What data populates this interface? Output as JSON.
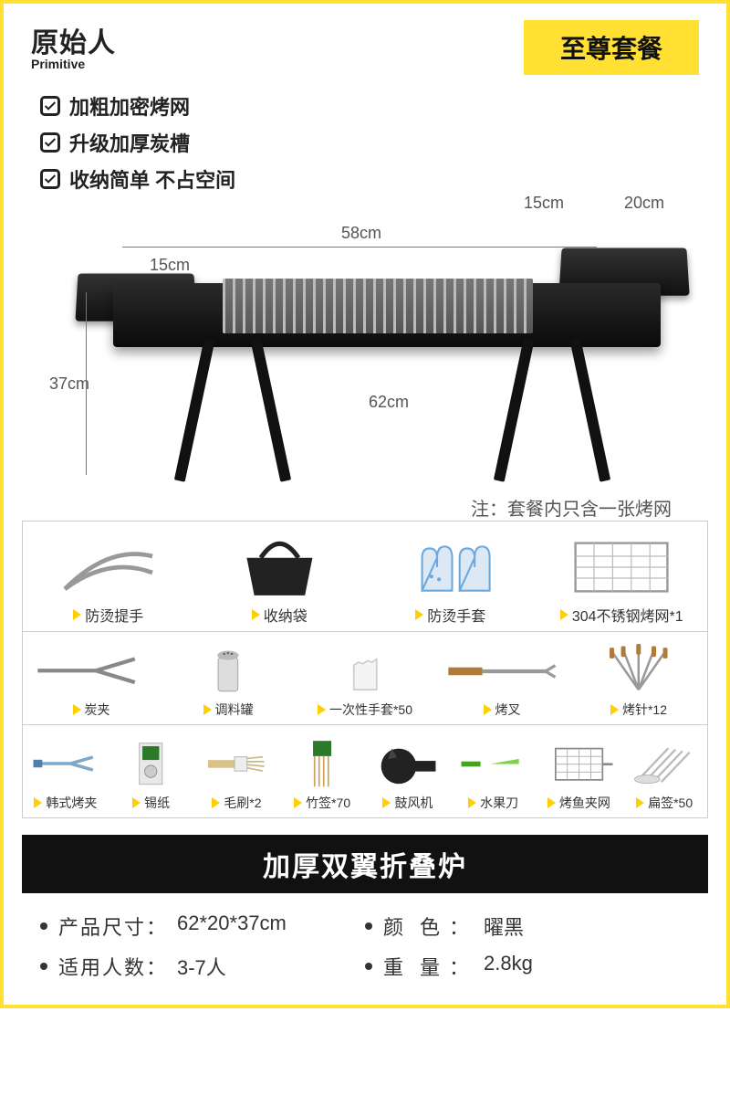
{
  "brand": {
    "cn": "原始人",
    "en": "Primitive"
  },
  "package_badge": "至尊套餐",
  "features": [
    "加粗加密烤网",
    "升级加厚炭槽",
    "收纳简单 不占空间"
  ],
  "dimensions": {
    "left_tray": "15cm",
    "center_width": "58cm",
    "right_tray_w": "15cm",
    "depth": "20cm",
    "height": "37cm",
    "leg_span": "62cm"
  },
  "note": "注：套餐内只含一张烤网",
  "accessories": {
    "row1": [
      {
        "label": "防烫提手",
        "icon": "tongs"
      },
      {
        "label": "收纳袋",
        "icon": "bag"
      },
      {
        "label": "防烫手套",
        "icon": "gloves"
      },
      {
        "label": "304不锈钢烤网*1",
        "icon": "mesh"
      }
    ],
    "row2": [
      {
        "label": "炭夹",
        "icon": "clip"
      },
      {
        "label": "调料罐",
        "icon": "shaker"
      },
      {
        "label": "一次性手套*50",
        "icon": "plastic-glove"
      },
      {
        "label": "烤叉",
        "icon": "fork"
      },
      {
        "label": "烤针*12",
        "icon": "skewers"
      }
    ],
    "row3": [
      {
        "label": "韩式烤夹",
        "icon": "kclip"
      },
      {
        "label": "锡纸",
        "icon": "foil"
      },
      {
        "label": "毛刷*2",
        "icon": "brush"
      },
      {
        "label": "竹签*70",
        "icon": "bamboo"
      },
      {
        "label": "鼓风机",
        "icon": "blower"
      },
      {
        "label": "水果刀",
        "icon": "knife"
      },
      {
        "label": "烤鱼夹网",
        "icon": "fishgrid"
      },
      {
        "label": "扁签*50",
        "icon": "flatskewer"
      }
    ]
  },
  "title_bar": "加厚双翼折叠炉",
  "specs": [
    {
      "k": "产品尺寸",
      "v": "62*20*37cm",
      "tight": true
    },
    {
      "k": "颜色",
      "v": "曜黑",
      "spaced": true
    },
    {
      "k": "适用人数",
      "v": "3-7人",
      "tight": true
    },
    {
      "k": "重量",
      "v": "2.8kg",
      "spaced": true
    }
  ],
  "colors": {
    "accent": "#ffe033",
    "tri": "#ffcf00",
    "black": "#111111",
    "text": "#333333",
    "muted": "#555555",
    "border": "#cccccc"
  }
}
